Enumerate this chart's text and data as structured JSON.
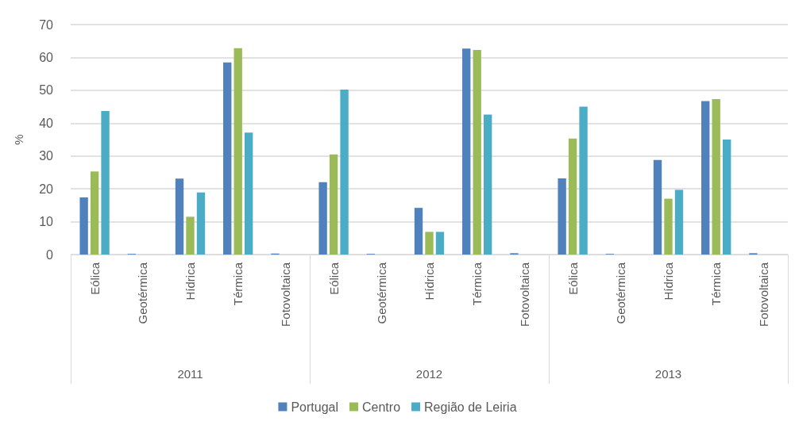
{
  "chart_data": {
    "type": "bar",
    "ylabel": "%",
    "categories": [
      "Eólica",
      "Geotérmica",
      "Hídrica",
      "Térmica",
      "Fotovoltaica",
      "Eólica",
      "Geotérmica",
      "Hídrica",
      "Térmica",
      "Fotovoltaica",
      "Eólica",
      "Geotérmica",
      "Hídrica",
      "Térmica",
      "Fotovoltaica"
    ],
    "annotations": [
      "2011",
      "2012",
      "2013"
    ],
    "series": [
      {
        "name": "Portugal",
        "color": "#4f81bd",
        "values": [
          17.4,
          0.2,
          23.1,
          58.5,
          0.3,
          22.0,
          0.2,
          14.2,
          62.7,
          0.4,
          23.2,
          0.2,
          28.8,
          46.7,
          0.4
        ]
      },
      {
        "name": "Centro",
        "color": "#9bbb59",
        "values": [
          25.3,
          0,
          11.5,
          62.8,
          0,
          30.5,
          0,
          6.9,
          62.3,
          0,
          35.3,
          0,
          17.0,
          47.3,
          0
        ]
      },
      {
        "name": "Região de Leiria",
        "color": "#4bacc6",
        "values": [
          43.7,
          0,
          18.9,
          37.1,
          0,
          50.2,
          0,
          6.9,
          42.6,
          0,
          45.0,
          0,
          19.7,
          35.0,
          0
        ]
      }
    ],
    "ylim": [
      0,
      70
    ],
    "yticks": [
      0,
      10,
      20,
      30,
      40,
      50,
      60,
      70
    ],
    "grid": "y",
    "legend": "bottom"
  }
}
